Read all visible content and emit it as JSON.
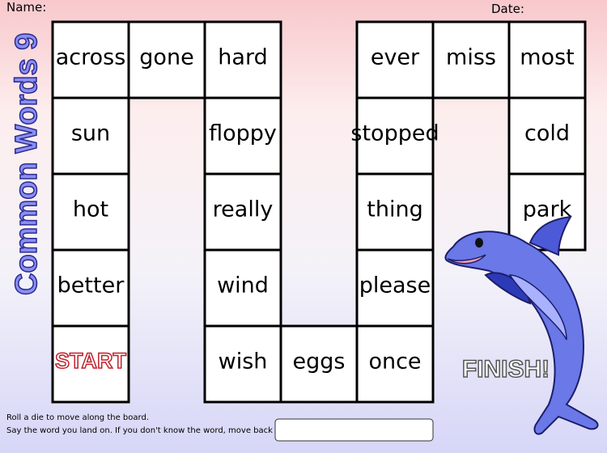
{
  "header": {
    "name_label": "Name:",
    "date_label": "Date:",
    "title": "Common Words 9"
  },
  "board": {
    "cells": [
      "across",
      "gone",
      "hard",
      "ever",
      "miss",
      "most",
      "sun",
      "floppy",
      "stopped",
      "cold",
      "hot",
      "really",
      "thing",
      "park",
      "better",
      "wind",
      "please",
      "START",
      "wish",
      "eggs",
      "once"
    ],
    "finish": "FINISH!"
  },
  "instructions": [
    "Roll a die to move along the board.",
    "Say the word you land on.  If you don't know the word, move back"
  ]
}
